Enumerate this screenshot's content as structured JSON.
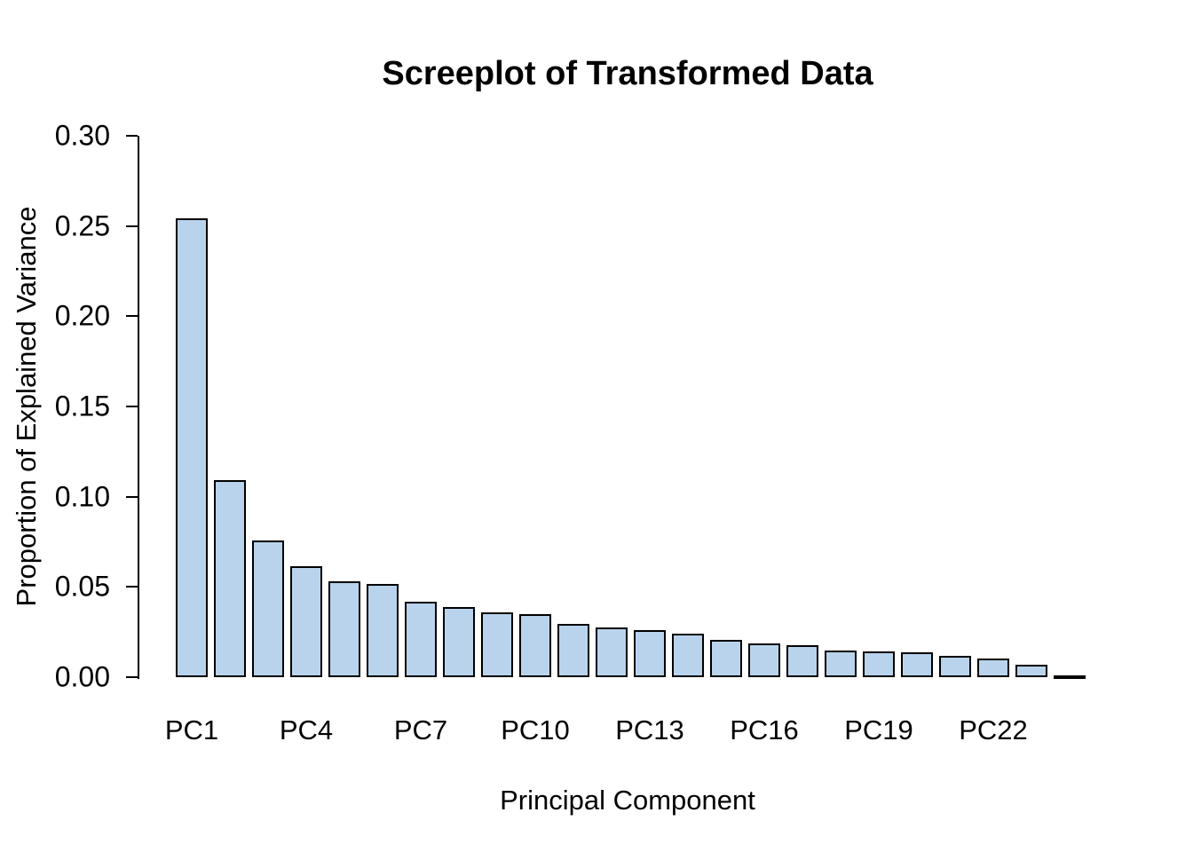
{
  "chart_data": {
    "type": "bar",
    "title": "Screeplot of Transformed Data",
    "xlabel": "Principal Component",
    "ylabel": "Proportion of Explained Variance",
    "categories": [
      "PC1",
      "PC2",
      "PC3",
      "PC4",
      "PC5",
      "PC6",
      "PC7",
      "PC8",
      "PC9",
      "PC10",
      "PC11",
      "PC12",
      "PC13",
      "PC14",
      "PC15",
      "PC16",
      "PC17",
      "PC18",
      "PC19",
      "PC20",
      "PC21",
      "PC22",
      "PC23",
      "PC24"
    ],
    "values": [
      0.2543,
      0.1092,
      0.0756,
      0.0616,
      0.0531,
      0.0518,
      0.0417,
      0.0387,
      0.0359,
      0.0348,
      0.0297,
      0.0274,
      0.0259,
      0.0241,
      0.0207,
      0.0187,
      0.0176,
      0.0146,
      0.0145,
      0.0138,
      0.0118,
      0.0105,
      0.0068,
      0.0005
    ],
    "ylim": [
      0,
      0.3
    ],
    "ytick_labels": [
      "0.00",
      "0.05",
      "0.10",
      "0.15",
      "0.20",
      "0.25",
      "0.30"
    ],
    "yticks": [
      0.0,
      0.05,
      0.1,
      0.15,
      0.2,
      0.25,
      0.3
    ],
    "x_label_every": 3,
    "shown_x_labels": [
      "PC1",
      "PC4",
      "PC7",
      "PC10",
      "PC13",
      "PC16",
      "PC19",
      "PC22"
    ],
    "grid": false,
    "legend": null,
    "colors": {
      "bar_fill": "#B9D3EC",
      "bar_border": "#000000",
      "axis": "#000000",
      "text": "#000000",
      "background": "#FFFFFF"
    }
  }
}
